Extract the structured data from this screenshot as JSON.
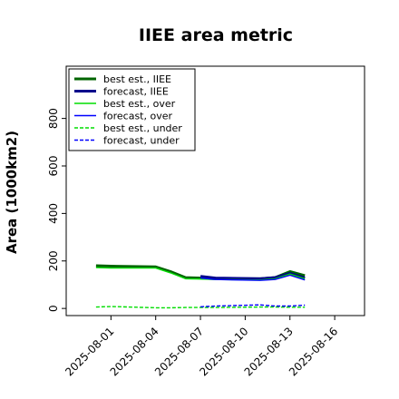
{
  "chart_data": {
    "type": "line",
    "title": "IIEE area metric",
    "xlabel": "",
    "ylabel": "Area (1000km2)",
    "x_ticks": [
      "2025-08-01",
      "2025-08-04",
      "2025-08-07",
      "2025-08-10",
      "2025-08-13",
      "2025-08-16"
    ],
    "highlight_tick": "2025-08-07",
    "highlight_color": "#2e8b2e",
    "xlim": [
      "2025-07-29",
      "2025-08-18"
    ],
    "y_ticks": [
      0,
      200,
      400,
      600,
      800
    ],
    "ylim": [
      -30,
      1020
    ],
    "grid": false,
    "legend_position": "top-left",
    "series": [
      {
        "name": "best est., IIEE",
        "color": "#006400",
        "style": "thick",
        "x": [
          "2025-07-31",
          "2025-08-01",
          "2025-08-04",
          "2025-08-05",
          "2025-08-06",
          "2025-08-07",
          "2025-08-08",
          "2025-08-11",
          "2025-08-12",
          "2025-08-13",
          "2025-08-14"
        ],
        "y": [
          180,
          178,
          175,
          155,
          130,
          128,
          125,
          125,
          130,
          155,
          138
        ]
      },
      {
        "name": "forecast, IIEE",
        "color": "#00008b",
        "style": "thick",
        "x": [
          "2025-08-07",
          "2025-08-08",
          "2025-08-11",
          "2025-08-12",
          "2025-08-13",
          "2025-08-14"
        ],
        "y": [
          135,
          128,
          125,
          130,
          148,
          128
        ]
      },
      {
        "name": "best est., over",
        "color": "#00dd00",
        "style": "solid",
        "x": [
          "2025-07-31",
          "2025-08-01",
          "2025-08-04",
          "2025-08-05",
          "2025-08-06",
          "2025-08-07",
          "2025-08-08",
          "2025-08-11",
          "2025-08-12",
          "2025-08-13",
          "2025-08-14"
        ],
        "y": [
          172,
          170,
          170,
          150,
          125,
          124,
          122,
          120,
          125,
          145,
          125
        ]
      },
      {
        "name": "forecast, over",
        "color": "#0000ff",
        "style": "solid",
        "x": [
          "2025-08-07",
          "2025-08-08",
          "2025-08-11",
          "2025-08-12",
          "2025-08-13",
          "2025-08-14"
        ],
        "y": [
          128,
          122,
          118,
          122,
          140,
          120
        ]
      },
      {
        "name": "best est., under",
        "color": "#00dd00",
        "style": "dashed",
        "x": [
          "2025-07-31",
          "2025-08-01",
          "2025-08-04",
          "2025-08-05",
          "2025-08-06",
          "2025-08-07",
          "2025-08-08",
          "2025-08-11",
          "2025-08-12",
          "2025-08-13",
          "2025-08-14"
        ],
        "y": [
          6,
          8,
          3,
          3,
          4,
          4,
          4,
          6,
          6,
          5,
          5
        ]
      },
      {
        "name": "forecast, under",
        "color": "#0000ff",
        "style": "dashed",
        "x": [
          "2025-08-07",
          "2025-08-08",
          "2025-08-11",
          "2025-08-12",
          "2025-08-13",
          "2025-08-14"
        ],
        "y": [
          7,
          10,
          15,
          10,
          10,
          14
        ]
      }
    ]
  }
}
